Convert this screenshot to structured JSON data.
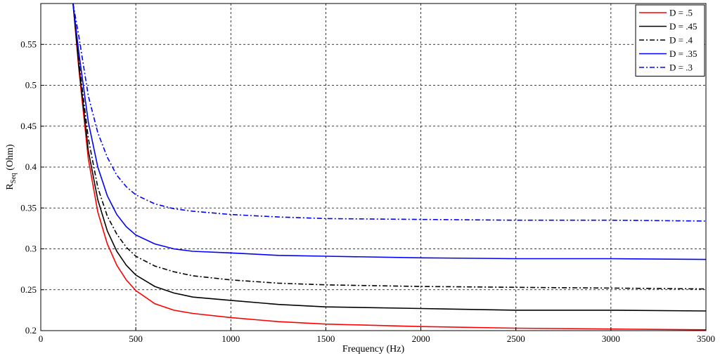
{
  "chart_data": {
    "type": "line",
    "xlabel": "Frequency (Hz)",
    "ylabel_main": "R",
    "ylabel_sub": "Seq",
    "ylabel_unit": " (Ohm)",
    "xlim": [
      0,
      3500
    ],
    "ylim": [
      0.2,
      0.6
    ],
    "xticks": [
      0,
      500,
      1000,
      1500,
      2000,
      2500,
      3000,
      3500
    ],
    "yticks": [
      0.2,
      0.25,
      0.3,
      0.35,
      0.4,
      0.45,
      0.5,
      0.55
    ],
    "xtick_labels": [
      "0",
      "500",
      "1000",
      "1500",
      "2000",
      "2500",
      "3000",
      "3500"
    ],
    "ytick_labels": [
      "0.2",
      "0.25",
      "0.3",
      "0.35",
      "0.4",
      "0.45",
      "0.5",
      "0.55"
    ],
    "grid": true,
    "legend_position": "top-right",
    "x": [
      170,
      200,
      250,
      300,
      350,
      400,
      450,
      500,
      600,
      700,
      800,
      1000,
      1250,
      1500,
      2000,
      2500,
      3000,
      3500
    ],
    "series": [
      {
        "name": "D = .5",
        "color": "#ff0000",
        "style": "solid",
        "values": [
          0.6,
          0.52,
          0.41,
          0.345,
          0.306,
          0.28,
          0.262,
          0.249,
          0.233,
          0.225,
          0.221,
          0.216,
          0.211,
          0.208,
          0.205,
          0.203,
          0.202,
          0.201
        ]
      },
      {
        "name": "D = .45",
        "color": "#000000",
        "style": "solid",
        "values": [
          0.6,
          0.525,
          0.42,
          0.36,
          0.322,
          0.297,
          0.28,
          0.268,
          0.254,
          0.246,
          0.241,
          0.237,
          0.232,
          0.229,
          0.227,
          0.225,
          0.225,
          0.224
        ]
      },
      {
        "name": "D = .4",
        "color": "#000000",
        "style": "dashdot",
        "values": [
          0.6,
          0.53,
          0.435,
          0.375,
          0.34,
          0.318,
          0.302,
          0.291,
          0.279,
          0.272,
          0.267,
          0.262,
          0.258,
          0.256,
          0.254,
          0.253,
          0.252,
          0.251
        ]
      },
      {
        "name": "D = .35",
        "color": "#0000ff",
        "style": "solid",
        "values": [
          0.6,
          0.54,
          0.455,
          0.4,
          0.365,
          0.342,
          0.327,
          0.317,
          0.306,
          0.3,
          0.297,
          0.295,
          0.292,
          0.291,
          0.289,
          0.288,
          0.288,
          0.287
        ]
      },
      {
        "name": "D = .3",
        "color": "#0000ff",
        "style": "dashdot",
        "values": [
          0.6,
          0.56,
          0.487,
          0.442,
          0.412,
          0.39,
          0.376,
          0.366,
          0.355,
          0.349,
          0.346,
          0.342,
          0.339,
          0.337,
          0.336,
          0.335,
          0.335,
          0.334
        ]
      }
    ]
  }
}
